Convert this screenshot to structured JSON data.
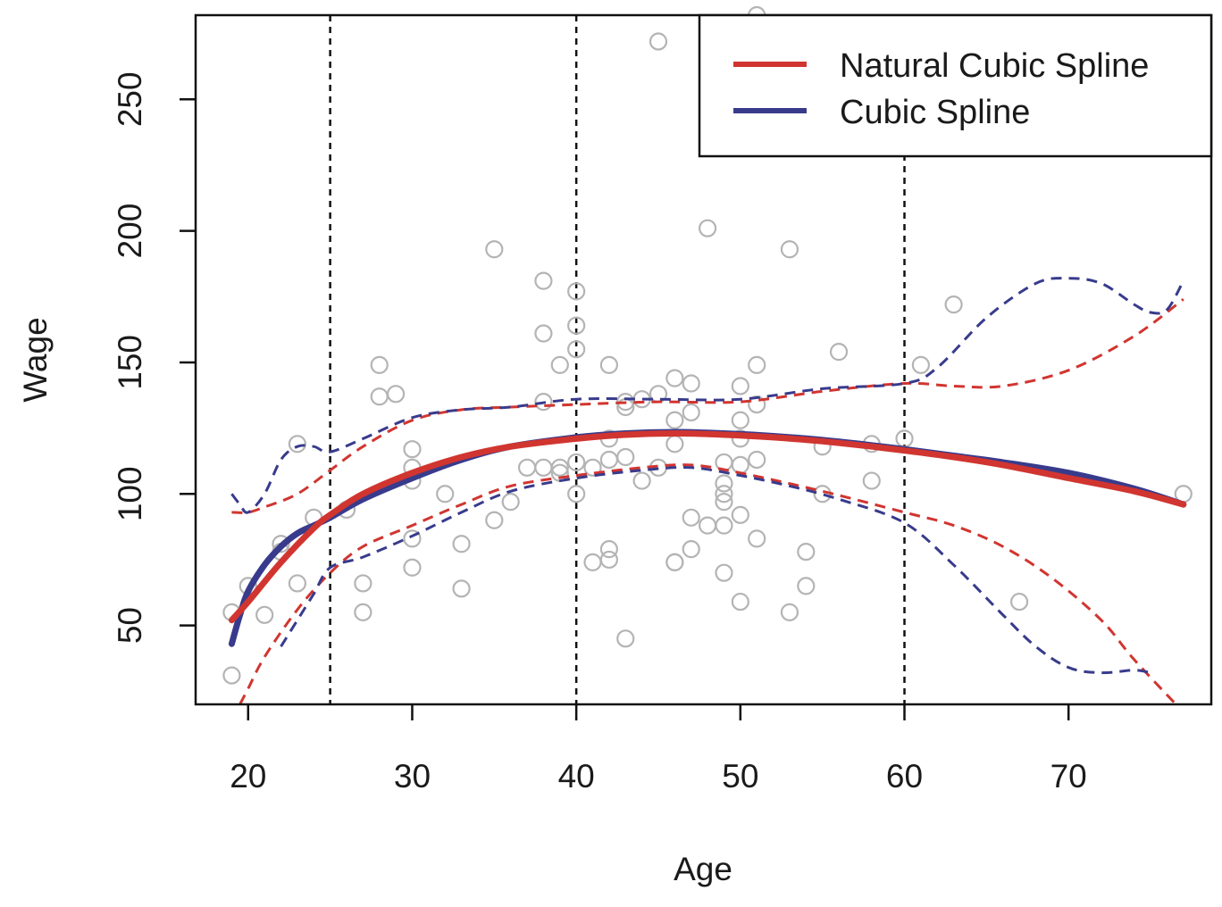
{
  "chart_data": {
    "type": "scatter",
    "title": "",
    "xlabel": "Age",
    "ylabel": "Wage",
    "xlim": [
      16.8,
      78.7
    ],
    "ylim": [
      20,
      282
    ],
    "xticks": [
      20,
      30,
      40,
      50,
      60,
      70
    ],
    "yticks": [
      50,
      100,
      150,
      200,
      250
    ],
    "knots": [
      25,
      40,
      60
    ],
    "grid": false,
    "legend_position": "top-right",
    "colors": {
      "points": "#b4b4b4",
      "natural_cubic_spline": "#d13530",
      "cubic_spline": "#383b8c",
      "knot_lines": "#111111"
    },
    "legend": [
      {
        "label": "Natural Cubic Spline",
        "color": "#d13530"
      },
      {
        "label": "Cubic Spline",
        "color": "#383b8c"
      }
    ],
    "points": [
      {
        "x": 19,
        "y": 55
      },
      {
        "x": 19,
        "y": 31
      },
      {
        "x": 20,
        "y": 65
      },
      {
        "x": 21,
        "y": 54
      },
      {
        "x": 22,
        "y": 81
      },
      {
        "x": 22,
        "y": 78
      },
      {
        "x": 23,
        "y": 119
      },
      {
        "x": 23,
        "y": 66
      },
      {
        "x": 24,
        "y": 91
      },
      {
        "x": 26,
        "y": 94
      },
      {
        "x": 27,
        "y": 66
      },
      {
        "x": 27,
        "y": 55
      },
      {
        "x": 28,
        "y": 149
      },
      {
        "x": 28,
        "y": 137
      },
      {
        "x": 29,
        "y": 138
      },
      {
        "x": 30,
        "y": 117
      },
      {
        "x": 30,
        "y": 110
      },
      {
        "x": 30,
        "y": 105
      },
      {
        "x": 30,
        "y": 83
      },
      {
        "x": 30,
        "y": 72
      },
      {
        "x": 32,
        "y": 100
      },
      {
        "x": 33,
        "y": 81
      },
      {
        "x": 33,
        "y": 64
      },
      {
        "x": 35,
        "y": 193
      },
      {
        "x": 35,
        "y": 90
      },
      {
        "x": 36,
        "y": 97
      },
      {
        "x": 37,
        "y": 110
      },
      {
        "x": 38,
        "y": 181
      },
      {
        "x": 38,
        "y": 161
      },
      {
        "x": 38,
        "y": 135
      },
      {
        "x": 38,
        "y": 110
      },
      {
        "x": 39,
        "y": 149
      },
      {
        "x": 39,
        "y": 110
      },
      {
        "x": 39,
        "y": 108
      },
      {
        "x": 40,
        "y": 177
      },
      {
        "x": 40,
        "y": 164
      },
      {
        "x": 40,
        "y": 155
      },
      {
        "x": 40,
        "y": 112
      },
      {
        "x": 40,
        "y": 100
      },
      {
        "x": 41,
        "y": 110
      },
      {
        "x": 41,
        "y": 74
      },
      {
        "x": 42,
        "y": 149
      },
      {
        "x": 42,
        "y": 121
      },
      {
        "x": 42,
        "y": 113
      },
      {
        "x": 42,
        "y": 79
      },
      {
        "x": 42,
        "y": 75
      },
      {
        "x": 43,
        "y": 135
      },
      {
        "x": 43,
        "y": 133
      },
      {
        "x": 43,
        "y": 114
      },
      {
        "x": 43,
        "y": 45
      },
      {
        "x": 44,
        "y": 136
      },
      {
        "x": 44,
        "y": 105
      },
      {
        "x": 45,
        "y": 272
      },
      {
        "x": 45,
        "y": 138
      },
      {
        "x": 45,
        "y": 110
      },
      {
        "x": 46,
        "y": 144
      },
      {
        "x": 46,
        "y": 128
      },
      {
        "x": 46,
        "y": 119
      },
      {
        "x": 46,
        "y": 74
      },
      {
        "x": 46,
        "y": 74
      },
      {
        "x": 47,
        "y": 142
      },
      {
        "x": 47,
        "y": 131
      },
      {
        "x": 47,
        "y": 91
      },
      {
        "x": 47,
        "y": 79
      },
      {
        "x": 48,
        "y": 278
      },
      {
        "x": 48,
        "y": 201
      },
      {
        "x": 48,
        "y": 88
      },
      {
        "x": 49,
        "y": 112
      },
      {
        "x": 49,
        "y": 104
      },
      {
        "x": 49,
        "y": 100
      },
      {
        "x": 49,
        "y": 97
      },
      {
        "x": 49,
        "y": 88
      },
      {
        "x": 49,
        "y": 70
      },
      {
        "x": 50,
        "y": 141
      },
      {
        "x": 50,
        "y": 128
      },
      {
        "x": 50,
        "y": 121
      },
      {
        "x": 50,
        "y": 111
      },
      {
        "x": 50,
        "y": 92
      },
      {
        "x": 50,
        "y": 59
      },
      {
        "x": 51,
        "y": 282
      },
      {
        "x": 51,
        "y": 149
      },
      {
        "x": 51,
        "y": 134
      },
      {
        "x": 51,
        "y": 113
      },
      {
        "x": 51,
        "y": 83
      },
      {
        "x": 53,
        "y": 193
      },
      {
        "x": 53,
        "y": 55
      },
      {
        "x": 54,
        "y": 78
      },
      {
        "x": 54,
        "y": 65
      },
      {
        "x": 55,
        "y": 118
      },
      {
        "x": 55,
        "y": 100
      },
      {
        "x": 56,
        "y": 154
      },
      {
        "x": 58,
        "y": 119
      },
      {
        "x": 58,
        "y": 105
      },
      {
        "x": 60,
        "y": 121
      },
      {
        "x": 61,
        "y": 149
      },
      {
        "x": 63,
        "y": 172
      },
      {
        "x": 67,
        "y": 59
      },
      {
        "x": 77,
        "y": 100
      }
    ],
    "series": [
      {
        "name": "Natural Cubic Spline",
        "style": "solid",
        "x": [
          19,
          20,
          22,
          24,
          25,
          27,
          30,
          33,
          36,
          40,
          43,
          46,
          49,
          52,
          55,
          58,
          60,
          63,
          66,
          70,
          74,
          77
        ],
        "y": [
          52,
          59,
          74,
          87,
          92,
          100,
          108,
          114,
          118,
          121,
          122.5,
          123,
          122.5,
          121.5,
          120,
          118,
          116.5,
          114,
          111,
          106,
          101,
          96
        ]
      },
      {
        "name": "Natural Cubic Spline upper band",
        "style": "dashed",
        "x": [
          19,
          20,
          21,
          23,
          25,
          27,
          30,
          33,
          36,
          40,
          45,
          50,
          55,
          60,
          63,
          66,
          70,
          74,
          77
        ],
        "y": [
          93,
          93,
          95,
          100,
          109,
          118,
          128,
          132,
          133,
          134,
          135,
          135,
          139,
          142,
          141,
          141,
          147,
          160,
          174
        ]
      },
      {
        "name": "Natural Cubic Spline lower band",
        "style": "dashed",
        "x": [
          19.5,
          20,
          21,
          23,
          25,
          27,
          30,
          33,
          36,
          40,
          44,
          47,
          50,
          55,
          60,
          63,
          66,
          69,
          72,
          74,
          77
        ],
        "y": [
          20,
          26,
          38,
          56,
          70,
          80,
          88,
          96,
          103,
          107,
          110,
          111,
          108,
          101,
          93,
          88,
          80,
          68,
          52,
          37,
          17
        ]
      },
      {
        "name": "Cubic Spline",
        "style": "solid",
        "x": [
          19,
          19.5,
          20,
          21,
          22,
          23,
          24,
          25,
          27,
          30,
          33,
          36,
          40,
          43,
          46,
          49,
          52,
          55,
          58,
          60,
          63,
          66,
          70,
          74,
          77
        ],
        "y": [
          43,
          54,
          63,
          73,
          80,
          85,
          88,
          91,
          98,
          106,
          113,
          118,
          121.5,
          123,
          123.5,
          123,
          122,
          120.5,
          118.5,
          117,
          114.5,
          112,
          108,
          102,
          96
        ]
      },
      {
        "name": "Cubic Spline upper band",
        "style": "dashed",
        "x": [
          19,
          19.5,
          20,
          21,
          22,
          23,
          24,
          25,
          27,
          30,
          33,
          36,
          40,
          45,
          50,
          55,
          60,
          62,
          65,
          68,
          70,
          72,
          74,
          75,
          76,
          77
        ],
        "y": [
          100,
          96,
          93,
          100,
          113,
          118,
          118,
          116,
          121,
          129,
          132,
          133,
          136,
          136,
          136,
          140,
          142,
          148,
          167,
          180,
          182,
          180,
          172,
          169,
          170,
          181
        ]
      },
      {
        "name": "Cubic Spline lower band",
        "style": "dashed",
        "x": [
          22,
          23,
          24,
          25,
          27,
          30,
          33,
          36,
          40,
          44,
          47,
          50,
          53,
          56,
          60,
          63,
          66,
          68,
          70,
          72,
          74,
          75
        ],
        "y": [
          42,
          52,
          62,
          72,
          76,
          84,
          93,
          101,
          106,
          109,
          110,
          107,
          103,
          98,
          89,
          73,
          54,
          42,
          34,
          32,
          33,
          32
        ]
      }
    ]
  }
}
